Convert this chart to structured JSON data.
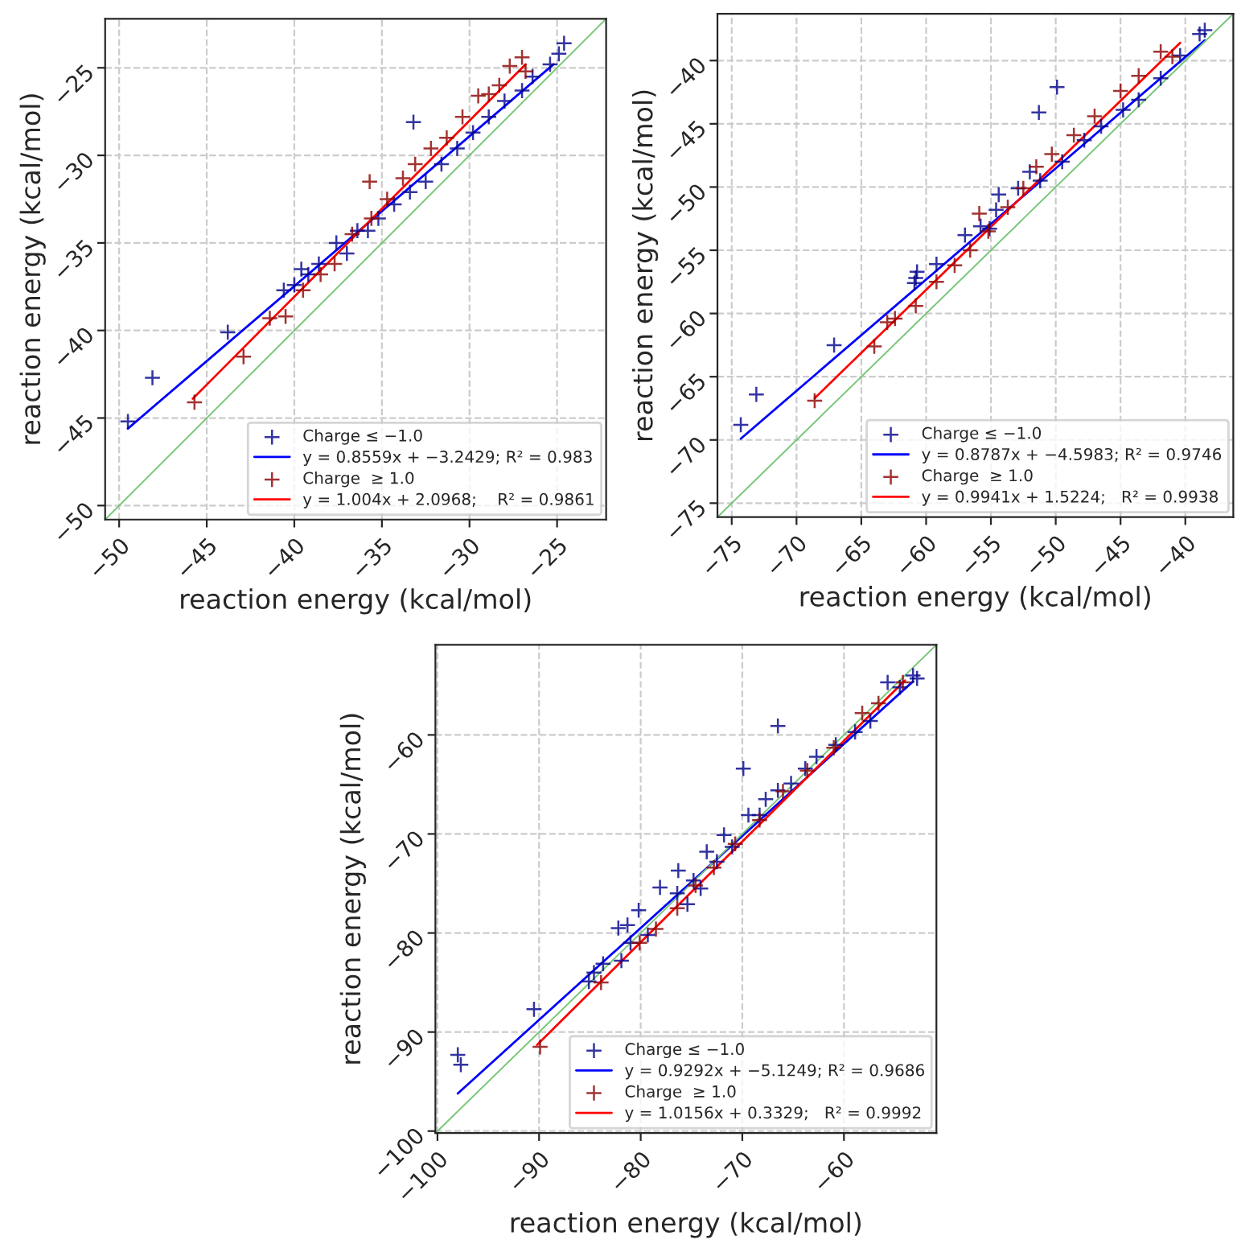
{
  "chart_data": [
    {
      "type": "scatter",
      "xlabel": "reaction energy (kcal/mol)",
      "ylabel": "reaction energy (kcal/mol)",
      "xlim": [
        -50.8,
        -22.2
      ],
      "ylim": [
        -50.8,
        -22.2
      ],
      "xticks": [
        {
          "value": -50,
          "label": "−50"
        },
        {
          "value": -45,
          "label": "−45"
        },
        {
          "value": -40,
          "label": "−40"
        },
        {
          "value": -35,
          "label": "−35"
        },
        {
          "value": -30,
          "label": "−30"
        },
        {
          "value": -25,
          "label": "−25"
        }
      ],
      "yticks": [
        {
          "value": -50,
          "label": "−50"
        },
        {
          "value": -45,
          "label": "−45"
        },
        {
          "value": -40,
          "label": "−40"
        },
        {
          "value": -35,
          "label": "−35"
        },
        {
          "value": -30,
          "label": "−30"
        },
        {
          "value": -25,
          "label": "−25"
        }
      ],
      "grid": true,
      "legend": "bottom right",
      "series": [
        {
          "marker": "cross",
          "name": "Charge ≤ −1.0",
          "color": "#00008b",
          "x": [
            -49.5,
            -48.1,
            -43.8,
            -40.6,
            -40.0,
            -39.6,
            -39.2,
            -38.6,
            -37.6,
            -37.0,
            -36.4,
            -35.8,
            -35.2,
            -34.3,
            -33.2,
            -33.4,
            -32.5,
            -31.6,
            -30.7,
            -29.8,
            -28.9,
            -28.0,
            -27.0,
            -26.4,
            -25.4,
            -24.9,
            -24.6
          ],
          "values": [
            -45.2,
            -42.7,
            -40.1,
            -37.7,
            -37.4,
            -36.5,
            -36.8,
            -36.2,
            -35.0,
            -35.6,
            -34.3,
            -34.3,
            -33.6,
            -32.8,
            -28.1,
            -32.1,
            -31.5,
            -30.5,
            -29.6,
            -28.7,
            -27.8,
            -26.9,
            -26.3,
            -25.5,
            -24.8,
            -24.2,
            -23.6
          ]
        },
        {
          "type": "line",
          "name": "y = 0.8559x + −3.2429; R² = 0.983",
          "color": "#0000ff",
          "x": [
            -49.5,
            -25.2
          ],
          "values": [
            -45.6,
            -24.8
          ]
        },
        {
          "marker": "cross",
          "name": "Charge  ≥ 1.0",
          "color": "#8b0000",
          "x": [
            -45.7,
            -42.9,
            -41.4,
            -40.5,
            -39.5,
            -38.5,
            -37.7,
            -36.7,
            -35.7,
            -35.6,
            -34.7,
            -33.8,
            -33.1,
            -32.2,
            -31.3,
            -30.4,
            -29.5,
            -28.9,
            -28.3,
            -27.7,
            -27.0,
            -26.8
          ],
          "values": [
            -44.1,
            -41.5,
            -39.3,
            -39.2,
            -37.7,
            -36.8,
            -36.2,
            -34.5,
            -31.5,
            -33.6,
            -32.5,
            -31.3,
            -30.5,
            -29.6,
            -29.0,
            -27.8,
            -26.6,
            -26.5,
            -26.0,
            -24.9,
            -24.4,
            -25.2
          ]
        },
        {
          "type": "line",
          "name": "y = 1.004x + 2.0968;    R² = 0.9861",
          "color": "#ff0000",
          "x": [
            -45.8,
            -26.8
          ],
          "values": [
            -43.9,
            -24.8
          ]
        },
        {
          "type": "line",
          "color": "#77c777",
          "x": [
            -50.8,
            -22.2
          ],
          "values": [
            -50.8,
            -22.2
          ]
        }
      ]
    },
    {
      "type": "scatter",
      "xlabel": "reaction energy (kcal/mol)",
      "ylabel": "reaction energy (kcal/mol)",
      "xlim": [
        -76.1,
        -36.3
      ],
      "ylim": [
        -76.1,
        -36.3
      ],
      "xticks": [
        {
          "value": -75,
          "label": "−75"
        },
        {
          "value": -70,
          "label": "−70"
        },
        {
          "value": -65,
          "label": "−65"
        },
        {
          "value": -60,
          "label": "−60"
        },
        {
          "value": -55,
          "label": "−55"
        },
        {
          "value": -50,
          "label": "−50"
        },
        {
          "value": -45,
          "label": "−45"
        },
        {
          "value": -40,
          "label": "−40"
        }
      ],
      "yticks": [
        {
          "value": -75,
          "label": "−75"
        },
        {
          "value": -70,
          "label": "−70"
        },
        {
          "value": -65,
          "label": "−65"
        },
        {
          "value": -60,
          "label": "−60"
        },
        {
          "value": -55,
          "label": "−55"
        },
        {
          "value": -50,
          "label": "−50"
        },
        {
          "value": -45,
          "label": "−45"
        },
        {
          "value": -40,
          "label": "−40"
        }
      ],
      "grid": true,
      "legend": "bottom right",
      "series": [
        {
          "marker": "cross",
          "name": "Charge ≤ −1.0",
          "color": "#00008b",
          "x": [
            -74.3,
            -73.1,
            -67.1,
            -60.9,
            -60.8,
            -60.7,
            -59.2,
            -57.0,
            -55.8,
            -54.6,
            -54.4,
            -52.9,
            -51.3,
            -49.9,
            -51.2,
            -49.5,
            -47.8,
            -46.5,
            -44.8,
            -43.6,
            -41.9,
            -40.4,
            -38.9,
            -38.5,
            -55.1,
            -52.0
          ],
          "values": [
            -68.8,
            -66.4,
            -62.5,
            -57.6,
            -57.2,
            -56.7,
            -56.1,
            -53.8,
            -53.1,
            -51.8,
            -50.6,
            -50.1,
            -44.1,
            -42.1,
            -49.5,
            -48.0,
            -46.3,
            -45.2,
            -43.9,
            -43.1,
            -41.4,
            -39.6,
            -37.9,
            -37.6,
            -53.3,
            -48.8
          ]
        },
        {
          "type": "line",
          "name": "y = 0.8787x + −4.5983; R² = 0.9746",
          "color": "#0000ff",
          "x": [
            -74.3,
            -38.5
          ],
          "values": [
            -69.9,
            -38.4
          ]
        },
        {
          "marker": "cross",
          "name": "Charge  ≥ 1.0",
          "color": "#8b0000",
          "x": [
            -68.6,
            -64.0,
            -63.0,
            -62.4,
            -60.8,
            -59.2,
            -57.8,
            -56.6,
            -55.9,
            -55.2,
            -53.7,
            -52.5,
            -51.5,
            -50.3,
            -48.6,
            -47.0,
            -45.0,
            -43.6,
            -41.9,
            -41.0
          ],
          "values": [
            -66.9,
            -62.6,
            -60.7,
            -60.4,
            -59.4,
            -57.5,
            -56.2,
            -55.0,
            -52.1,
            -53.5,
            -51.6,
            -50.1,
            -48.4,
            -47.4,
            -45.9,
            -44.4,
            -42.4,
            -41.2,
            -39.3,
            -39.7
          ]
        },
        {
          "type": "line",
          "name": "y = 0.9941x + 1.5224;   R² = 0.9938",
          "color": "#ff0000",
          "x": [
            -68.6,
            -40.4
          ],
          "values": [
            -66.7,
            -38.6
          ]
        },
        {
          "type": "line",
          "color": "#77c777",
          "x": [
            -76.1,
            -36.3
          ],
          "values": [
            -76.1,
            -36.3
          ]
        }
      ]
    },
    {
      "type": "scatter",
      "xlabel": "reaction energy (kcal/mol)",
      "ylabel": "reaction energy (kcal/mol)",
      "xlim": [
        -100.2,
        -50.9
      ],
      "ylim": [
        -100.2,
        -50.9
      ],
      "xticks": [
        {
          "value": -100,
          "label": "−100"
        },
        {
          "value": -90,
          "label": "−90"
        },
        {
          "value": -80,
          "label": "−80"
        },
        {
          "value": -70,
          "label": "−70"
        },
        {
          "value": -60,
          "label": "−60"
        }
      ],
      "yticks": [
        {
          "value": -100,
          "label": "−100"
        },
        {
          "value": -90,
          "label": "−90"
        },
        {
          "value": -80,
          "label": "−80"
        },
        {
          "value": -70,
          "label": "−70"
        },
        {
          "value": -60,
          "label": "−60"
        }
      ],
      "grid": true,
      "legend": "bottom right",
      "series": [
        {
          "marker": "cross",
          "name": "Charge ≤ −1.0",
          "color": "#00008b",
          "x": [
            -98.0,
            -97.7,
            -90.5,
            -85.1,
            -84.6,
            -83.7,
            -82.2,
            -81.3,
            -80.2,
            -81.0,
            -79.3,
            -78.1,
            -76.3,
            -76.4,
            -75.4,
            -74.8,
            -73.5,
            -74.1,
            -71.8,
            -71.0,
            -69.9,
            -69.4,
            -67.7,
            -66.5,
            -66.5,
            -65.2,
            -63.8,
            -62.7,
            -60.8,
            -58.9,
            -57.4,
            -55.7,
            -54.5,
            -53.2,
            -52.8,
            -81.9,
            -72.5,
            -68.3
          ],
          "values": [
            -92.3,
            -93.3,
            -87.7,
            -84.9,
            -84.0,
            -83.1,
            -79.5,
            -79.2,
            -77.7,
            -81.0,
            -80.2,
            -75.4,
            -73.7,
            -76.0,
            -77.1,
            -74.7,
            -71.8,
            -75.5,
            -70.1,
            -71.3,
            -63.4,
            -68.1,
            -66.5,
            -59.1,
            -65.6,
            -64.9,
            -63.4,
            -62.2,
            -61.0,
            -59.7,
            -58.6,
            -54.7,
            -55.2,
            -54.0,
            -54.3,
            -82.8,
            -72.8,
            -68.1
          ]
        },
        {
          "type": "line",
          "name": "y = 0.9292x + −5.1249; R² = 0.9686",
          "color": "#0000ff",
          "x": [
            -98.0,
            -53.2
          ],
          "values": [
            -96.2,
            -54.6
          ]
        },
        {
          "marker": "cross",
          "name": "Charge  ≥ 1.0",
          "color": "#8b0000",
          "x": [
            -89.9,
            -83.9,
            -80.1,
            -78.5,
            -76.4,
            -74.6,
            -72.8,
            -70.7,
            -68.3,
            -66.0,
            -63.6,
            -61.0,
            -58.2,
            -56.6,
            -54.2
          ],
          "values": [
            -91.5,
            -85.0,
            -81.0,
            -79.6,
            -77.5,
            -75.2,
            -73.4,
            -71.0,
            -68.6,
            -65.7,
            -63.6,
            -61.3,
            -57.8,
            -56.8,
            -54.7
          ]
        },
        {
          "type": "line",
          "name": "y = 1.0156x + 0.3329;   R² = 0.9992",
          "color": "#ff0000",
          "x": [
            -90.2,
            -54.0
          ],
          "values": [
            -91.3,
            -54.5
          ]
        },
        {
          "type": "line",
          "color": "#77c777",
          "x": [
            -100.2,
            -50.9
          ],
          "values": [
            -100.2,
            -50.9
          ]
        }
      ]
    }
  ]
}
